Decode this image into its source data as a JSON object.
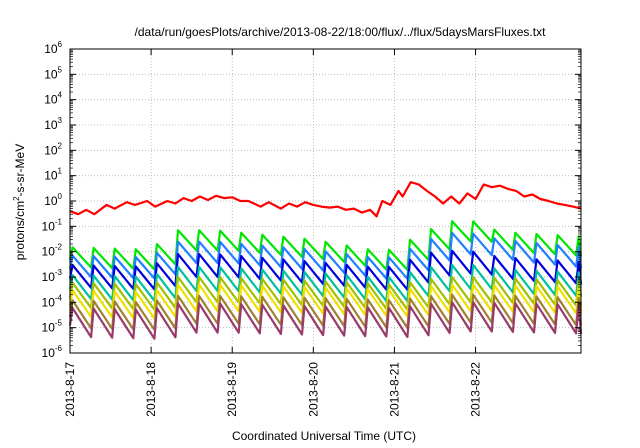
{
  "chart_data": {
    "type": "line",
    "title": "/data/run/goesPlots/archive/2013-08-22/18:00/flux/../flux/5daysMarsFluxes.txt",
    "xlabel": "Coordinated Universal Time (UTC)",
    "ylabel_main": "protons/cm",
    "ylabel_sup": "2",
    "ylabel_rest": "-s-sr-MeV",
    "y_scale": "log",
    "ylim": [
      1e-06,
      1000000.0
    ],
    "xlim": [
      0,
      6.3
    ],
    "x_unit": "days since 2013-8-17 00:00 UTC",
    "grid": true,
    "legend": "none",
    "x_ticks": [
      {
        "x": 0,
        "label": "2013-8-17"
      },
      {
        "x": 1,
        "label": "2013-8-18"
      },
      {
        "x": 2,
        "label": "2013-8-19"
      },
      {
        "x": 3,
        "label": "2013-8-20"
      },
      {
        "x": 4,
        "label": "2013-8-21"
      },
      {
        "x": 5,
        "label": "2013-8-22"
      }
    ],
    "y_ticks": [
      {
        "exp": 6,
        "base": "10",
        "sup": "6"
      },
      {
        "exp": 5,
        "base": "10",
        "sup": "5"
      },
      {
        "exp": 4,
        "base": "10",
        "sup": "4"
      },
      {
        "exp": 3,
        "base": "10",
        "sup": "3"
      },
      {
        "exp": 2,
        "base": "10",
        "sup": "2"
      },
      {
        "exp": 1,
        "base": "10",
        "sup": "1"
      },
      {
        "exp": 0,
        "base": "10",
        "sup": "0"
      },
      {
        "exp": -1,
        "base": "10",
        "sup": "-1"
      },
      {
        "exp": -2,
        "base": "10",
        "sup": "-2"
      },
      {
        "exp": -3,
        "base": "10",
        "sup": "-3"
      },
      {
        "exp": -4,
        "base": "10",
        "sup": "-4"
      },
      {
        "exp": -5,
        "base": "10",
        "sup": "-5"
      },
      {
        "exp": -6,
        "base": "10",
        "sup": "-6"
      }
    ],
    "series": [
      {
        "color": "#ff0000",
        "mode": "smooth",
        "points": [
          [
            0,
            0.4
          ],
          [
            0.1,
            0.3
          ],
          [
            0.2,
            0.45
          ],
          [
            0.3,
            0.3
          ],
          [
            0.45,
            0.7
          ],
          [
            0.55,
            0.5
          ],
          [
            0.7,
            0.9
          ],
          [
            0.8,
            0.7
          ],
          [
            0.95,
            1.0
          ],
          [
            1.05,
            0.6
          ],
          [
            1.2,
            1.0
          ],
          [
            1.3,
            0.8
          ],
          [
            1.4,
            1.3
          ],
          [
            1.5,
            1.0
          ],
          [
            1.6,
            1.5
          ],
          [
            1.7,
            1.1
          ],
          [
            1.8,
            1.6
          ],
          [
            1.9,
            1.3
          ],
          [
            2.0,
            1.4
          ],
          [
            2.1,
            1.0
          ],
          [
            2.2,
            1.0
          ],
          [
            2.35,
            0.6
          ],
          [
            2.45,
            0.9
          ],
          [
            2.6,
            0.5
          ],
          [
            2.7,
            0.8
          ],
          [
            2.8,
            0.6
          ],
          [
            2.9,
            0.9
          ],
          [
            3.0,
            0.7
          ],
          [
            3.1,
            0.6
          ],
          [
            3.2,
            0.55
          ],
          [
            3.3,
            0.6
          ],
          [
            3.4,
            0.45
          ],
          [
            3.5,
            0.5
          ],
          [
            3.6,
            0.35
          ],
          [
            3.7,
            0.45
          ],
          [
            3.78,
            0.25
          ],
          [
            3.85,
            1.0
          ],
          [
            3.95,
            0.7
          ],
          [
            4.05,
            2.5
          ],
          [
            4.1,
            1.5
          ],
          [
            4.2,
            5.5
          ],
          [
            4.3,
            4.5
          ],
          [
            4.4,
            2.5
          ],
          [
            4.5,
            1.5
          ],
          [
            4.6,
            0.8
          ],
          [
            4.7,
            1.5
          ],
          [
            4.8,
            0.8
          ],
          [
            4.9,
            2.0
          ],
          [
            5.0,
            1.2
          ],
          [
            5.1,
            4.5
          ],
          [
            5.2,
            3.5
          ],
          [
            5.3,
            4.0
          ],
          [
            5.4,
            3.0
          ],
          [
            5.5,
            2.5
          ],
          [
            5.6,
            1.5
          ],
          [
            5.7,
            1.8
          ],
          [
            5.8,
            1.2
          ],
          [
            5.9,
            1.0
          ],
          [
            6.0,
            0.8
          ],
          [
            6.1,
            0.7
          ],
          [
            6.2,
            0.6
          ],
          [
            6.3,
            0.5
          ]
        ]
      },
      {
        "color": "#00e600",
        "mode": "sawtooth",
        "period": 0.26,
        "depth": 0.8,
        "env": [
          [
            0,
            0.015
          ],
          [
            1.0,
            0.012
          ],
          [
            1.25,
            0.07
          ],
          [
            1.8,
            0.07
          ],
          [
            2.6,
            0.04
          ],
          [
            3.0,
            0.03
          ],
          [
            3.7,
            0.012
          ],
          [
            4.0,
            0.012
          ],
          [
            4.3,
            0.05
          ],
          [
            4.6,
            0.12
          ],
          [
            4.8,
            0.2
          ],
          [
            5.0,
            0.15
          ],
          [
            5.3,
            0.06
          ],
          [
            6.3,
            0.04
          ]
        ]
      },
      {
        "color": "#2080ff",
        "mode": "sawtooth",
        "period": 0.26,
        "depth": 0.85,
        "env": [
          [
            0,
            0.007
          ],
          [
            1.0,
            0.006
          ],
          [
            1.25,
            0.025
          ],
          [
            1.8,
            0.025
          ],
          [
            2.6,
            0.015
          ],
          [
            3.0,
            0.012
          ],
          [
            3.7,
            0.006
          ],
          [
            4.0,
            0.006
          ],
          [
            4.3,
            0.02
          ],
          [
            4.6,
            0.05
          ],
          [
            4.8,
            0.06
          ],
          [
            5.0,
            0.05
          ],
          [
            5.3,
            0.03
          ],
          [
            6.3,
            0.015
          ]
        ]
      },
      {
        "color": "#0000dd",
        "mode": "sawtooth",
        "period": 0.26,
        "depth": 0.9,
        "env": [
          [
            0,
            0.003
          ],
          [
            1.0,
            0.0025
          ],
          [
            1.25,
            0.008
          ],
          [
            1.8,
            0.008
          ],
          [
            2.6,
            0.005
          ],
          [
            3.0,
            0.004
          ],
          [
            3.7,
            0.0025
          ],
          [
            4.0,
            0.0025
          ],
          [
            4.3,
            0.007
          ],
          [
            4.6,
            0.012
          ],
          [
            4.8,
            0.01
          ],
          [
            5.0,
            0.01
          ],
          [
            5.3,
            0.006
          ],
          [
            6.3,
            0.004
          ]
        ]
      },
      {
        "color": "#00c0a0",
        "mode": "sawtooth",
        "period": 0.26,
        "depth": 0.95,
        "env": [
          [
            0,
            0.0012
          ],
          [
            1.0,
            0.001
          ],
          [
            1.25,
            0.0025
          ],
          [
            1.8,
            0.0025
          ],
          [
            2.6,
            0.0018
          ],
          [
            3.0,
            0.0015
          ],
          [
            3.7,
            0.001
          ],
          [
            4.0,
            0.001
          ],
          [
            4.3,
            0.002
          ],
          [
            4.6,
            0.003
          ],
          [
            4.8,
            0.003
          ],
          [
            5.0,
            0.003
          ],
          [
            5.3,
            0.002
          ],
          [
            6.3,
            0.0015
          ]
        ]
      },
      {
        "color": "#a0c000",
        "mode": "sawtooth",
        "period": 0.26,
        "depth": 1.0,
        "env": [
          [
            0,
            0.0006
          ],
          [
            1.0,
            0.0005
          ],
          [
            1.25,
            0.001
          ],
          [
            1.8,
            0.001
          ],
          [
            3.0,
            0.0007
          ],
          [
            4.0,
            0.0005
          ],
          [
            4.6,
            0.001
          ],
          [
            5.0,
            0.001
          ],
          [
            6.3,
            0.0007
          ]
        ]
      },
      {
        "color": "#f0e000",
        "mode": "sawtooth",
        "period": 0.26,
        "depth": 1.05,
        "env": [
          [
            0,
            0.0003
          ],
          [
            1.0,
            0.00025
          ],
          [
            1.25,
            0.0005
          ],
          [
            1.8,
            0.0005
          ],
          [
            3.0,
            0.0004
          ],
          [
            4.0,
            0.0003
          ],
          [
            4.6,
            0.0005
          ],
          [
            5.0,
            0.0005
          ],
          [
            6.3,
            0.0004
          ]
        ]
      },
      {
        "color": "#a08030",
        "mode": "sawtooth",
        "period": 0.26,
        "depth": 1.1,
        "env": [
          [
            0,
            0.00012
          ],
          [
            1.0,
            0.0001
          ],
          [
            1.25,
            0.00018
          ],
          [
            1.8,
            0.00018
          ],
          [
            3.0,
            0.00015
          ],
          [
            4.0,
            0.00012
          ],
          [
            4.6,
            0.0002
          ],
          [
            5.0,
            0.0002
          ],
          [
            6.3,
            0.00015
          ]
        ]
      },
      {
        "color": "#983a6a",
        "mode": "sawtooth",
        "period": 0.26,
        "depth": 1.15,
        "env": [
          [
            0,
            6e-05
          ],
          [
            1.0,
            5e-05
          ],
          [
            1.25,
            9e-05
          ],
          [
            1.8,
            9e-05
          ],
          [
            3.0,
            7e-05
          ],
          [
            4.0,
            6e-05
          ],
          [
            4.6,
            0.0001
          ],
          [
            5.0,
            0.0001
          ],
          [
            6.3,
            8e-05
          ]
        ]
      }
    ]
  }
}
